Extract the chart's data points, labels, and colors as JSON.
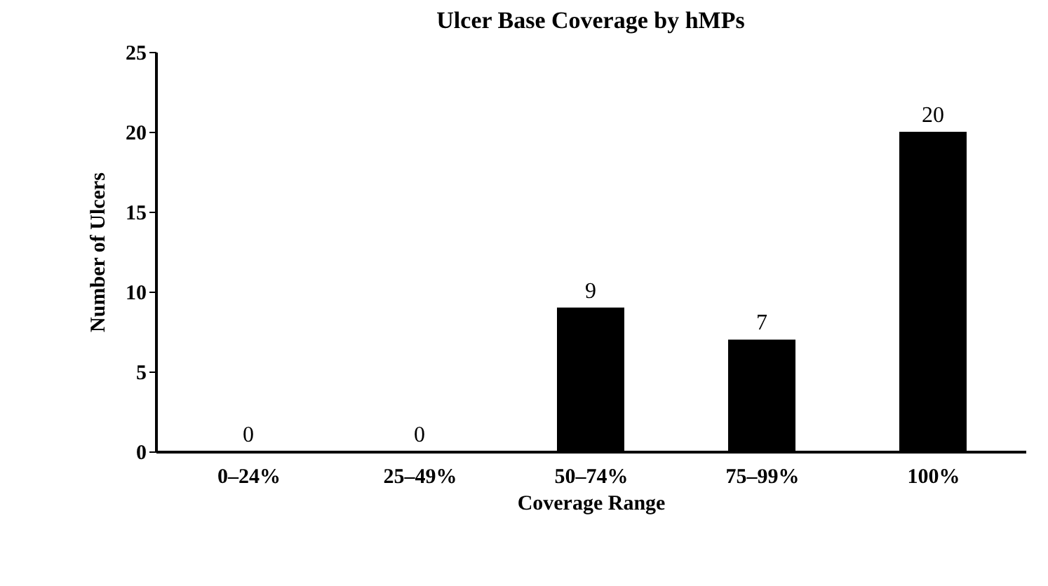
{
  "chart_data": {
    "type": "bar",
    "title": "Ulcer Base Coverage by hMPs",
    "xlabel": "Coverage Range",
    "ylabel": "Number of Ulcers",
    "categories": [
      "0–24%",
      "25–49%",
      "50–74%",
      "75–99%",
      "100%"
    ],
    "values": [
      0,
      0,
      9,
      7,
      20
    ],
    "color": "#000000",
    "ylim": [
      0,
      25
    ],
    "yticks": [
      0,
      5,
      10,
      15,
      20,
      25
    ],
    "grid": false,
    "data_labels": true
  }
}
